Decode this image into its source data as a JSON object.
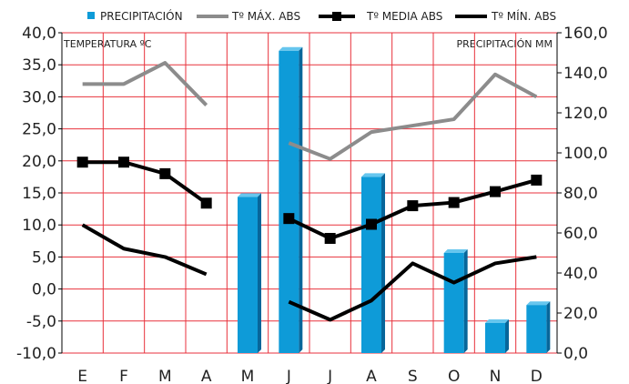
{
  "chart_data": {
    "type": "bar",
    "categories": [
      "E",
      "F",
      "M",
      "A",
      "M",
      "J",
      "J",
      "A",
      "S",
      "O",
      "N",
      "D"
    ],
    "left_axis": {
      "label": "TEMPERATURA ºC",
      "lim": [
        -10,
        40
      ],
      "ticks": [
        "40,0",
        "35,0",
        "30,0",
        "25,0",
        "20,0",
        "15,0",
        "10,0",
        "5,0",
        "0,0",
        "-5,0",
        "-10,0"
      ]
    },
    "right_axis": {
      "label": "PRECIPITACIÓN MM",
      "lim": [
        0,
        160
      ],
      "ticks": [
        "160,0",
        "140,0",
        "120,0",
        "100,0",
        "80,0",
        "60,0",
        "40,0",
        "20,0",
        "0,0"
      ]
    },
    "series": [
      {
        "name": "PRECIPITACIÓN",
        "kind": "bar",
        "axis": "right",
        "color": "#0e9bd8",
        "values": [
          0,
          0,
          0,
          0,
          78,
          151,
          0,
          88,
          0,
          50,
          15,
          24
        ]
      },
      {
        "name": "Tº MÁX. ABS",
        "kind": "line",
        "axis": "left",
        "color": "#8c8c8c",
        "values": [
          32,
          32,
          35.3,
          28.7,
          null,
          22.8,
          20.3,
          24.5,
          25.5,
          26.5,
          33.5,
          30
        ]
      },
      {
        "name": "Tº MEDIA ABS",
        "kind": "line-marker",
        "axis": "left",
        "color": "#000000",
        "values": [
          19.8,
          19.8,
          18,
          13.4,
          null,
          11,
          7.9,
          10.1,
          13,
          13.5,
          15.2,
          17
        ]
      },
      {
        "name": "Tº MÍN. ABS",
        "kind": "line",
        "axis": "left",
        "color": "#000000",
        "values": [
          10,
          6.3,
          5,
          2.3,
          null,
          -2,
          -4.8,
          -1.8,
          4,
          1,
          4,
          5
        ]
      }
    ],
    "grid": true,
    "legend_position": "top",
    "grid_color": "#e8323c"
  }
}
